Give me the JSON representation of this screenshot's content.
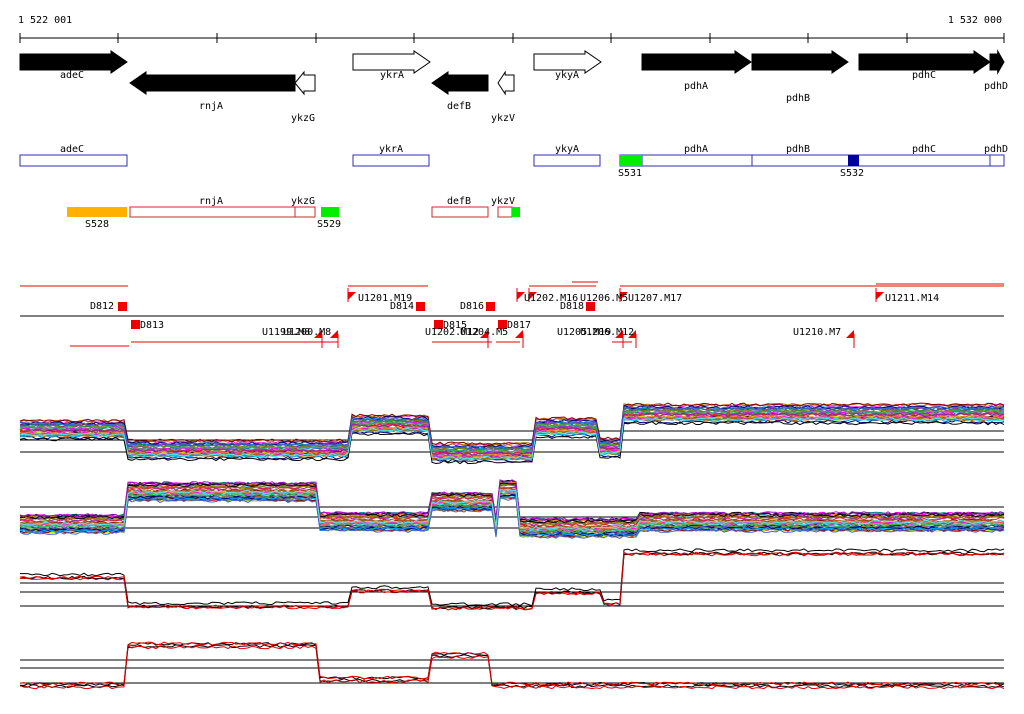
{
  "coords": {
    "start": "1 522 001",
    "end": "1 532 000"
  },
  "colors": {
    "gene": "#000000",
    "gene_hollow": "#ffffff",
    "orf_box": "#2f2fb0",
    "rna_box": "#cc2b2b",
    "green": "#00ee00",
    "orange": "#ffb000",
    "navy": "#0000a0",
    "marker": "#ee0000",
    "signal_dark": "#000000",
    "signal_red": "#e00000"
  },
  "genes": [
    {
      "name": "adeC",
      "strand": "+",
      "filled": true
    },
    {
      "name": "rnjA",
      "strand": "-",
      "filled": true
    },
    {
      "name": "ykzG",
      "strand": "-",
      "filled": false
    },
    {
      "name": "ykrA",
      "strand": "+",
      "filled": false
    },
    {
      "name": "defB",
      "strand": "-",
      "filled": true
    },
    {
      "name": "ykzV",
      "strand": "-",
      "filled": false
    },
    {
      "name": "ykyA",
      "strand": "+",
      "filled": false
    },
    {
      "name": "pdhA",
      "strand": "+",
      "filled": true
    },
    {
      "name": "pdhB",
      "strand": "+",
      "filled": true
    },
    {
      "name": "pdhC",
      "strand": "+",
      "filled": true
    },
    {
      "name": "pdhD",
      "strand": "+",
      "filled": true
    }
  ],
  "orf_boxes": [
    "adeC",
    "ykrA",
    "ykyA",
    "pdhA",
    "pdhB",
    "pdhC",
    "pdhD"
  ],
  "orf_sites": [
    "S531",
    "S532"
  ],
  "rna_boxes": [
    "rnjA",
    "ykzG",
    "defB",
    "ykzV"
  ],
  "rna_sites": [
    "S528",
    "S529"
  ],
  "forward_markers": [
    "U1201.M19",
    "U1202.M16",
    "U1206.M5",
    "U1207.M17",
    "U1211.M14"
  ],
  "downstream_markers": [
    "D812",
    "D813",
    "D814",
    "D815",
    "D816",
    "D817",
    "D818"
  ],
  "reverse_markers": [
    "U1199.M8",
    "U1200.M8",
    "U1202.M12",
    "U1204.M5",
    "U1205.M19",
    "U1206.M12",
    "U1210.M7"
  ],
  "panels": [
    "profile-forward",
    "profile-reverse",
    "summary-forward",
    "summary-reverse"
  ]
}
